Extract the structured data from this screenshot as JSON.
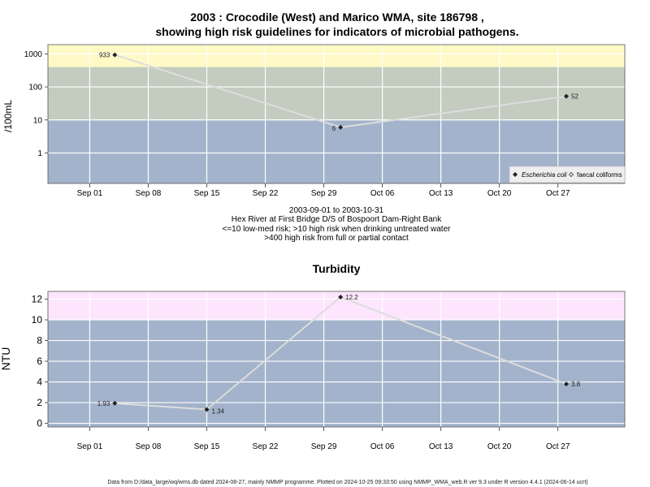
{
  "page": {
    "title_line1": "2003 : Crocodile (West) and Marico WMA, site 186798 ,",
    "title_line2": "showing high risk guidelines for indicators of microbial pathogens.",
    "footer": "Data from D:/data_large/wq/wms.db dated 2024-08-27, mainly NMMP programme. Plotted on 2024-10-25 09:33:50 using NMMP_WMA_web.R ver 9.3 under R version 4.4.1 (2024-06-14 ucrt)"
  },
  "colors": {
    "plot_bg": "#a3b3cb",
    "band_high_risk": "#fff9c6",
    "band_mid": "#c3ccbf",
    "band_turbidity_high": "#fde6fd",
    "grid": "#ffffff",
    "line": "#dddddd",
    "point": "#222222"
  },
  "chart_data": [
    {
      "type": "line",
      "ylabel": "/100mL",
      "yscale": "log",
      "ylim": [
        0.12,
        1900
      ],
      "yticks": [
        1,
        10,
        100,
        1000
      ],
      "ytick_labels": [
        "1",
        "10",
        "100",
        "1000"
      ],
      "xlim": [
        "2003-08-27",
        "2003-11-04"
      ],
      "xticks": [
        "2003-09-01",
        "2003-09-08",
        "2003-09-15",
        "2003-09-22",
        "2003-09-29",
        "2003-10-06",
        "2003-10-13",
        "2003-10-20",
        "2003-10-27"
      ],
      "xtick_labels": [
        "Sep 01",
        "Sep 08",
        "Sep 15",
        "Sep 22",
        "Sep 29",
        "Oct 06",
        "Oct 13",
        "Oct 20",
        "Oct 27"
      ],
      "bands": [
        {
          "from": 0.12,
          "to": 10,
          "color": "#a3b3cb"
        },
        {
          "from": 10,
          "to": 400,
          "color": "#c3ccbf"
        },
        {
          "from": 400,
          "to": 1900,
          "color": "#fff9c6"
        }
      ],
      "series": [
        {
          "name": "Escherichia coli",
          "x": [
            "2003-09-04",
            "2003-10-01",
            "2003-10-28"
          ],
          "y": [
            933,
            6,
            52
          ],
          "labels": [
            "933",
            "6",
            "52"
          ]
        }
      ],
      "legend": {
        "position": "bottom-right",
        "entries": [
          "Escherichia coli",
          "faecal coliforms"
        ]
      },
      "caption_lines": [
        "2003-09-01 to 2003-10-31",
        "Hex River at First Bridge D/S of Bospoort Dam-Right Bank",
        "<=10 low-med risk; >10 high risk when drinking untreated water",
        ">400 high risk from full or partial contact"
      ]
    },
    {
      "type": "line",
      "title": "Turbidity",
      "ylabel": "NTU",
      "yscale": "linear",
      "ylim": [
        -0.35,
        12.75
      ],
      "yticks": [
        0,
        2,
        4,
        6,
        8,
        10,
        12
      ],
      "ytick_labels": [
        "0",
        "2",
        "4",
        "6",
        "8",
        "10",
        "12"
      ],
      "xlim": [
        "2003-08-27",
        "2003-11-04"
      ],
      "xticks": [
        "2003-09-01",
        "2003-09-08",
        "2003-09-15",
        "2003-09-22",
        "2003-09-29",
        "2003-10-06",
        "2003-10-13",
        "2003-10-20",
        "2003-10-27"
      ],
      "xtick_labels": [
        "Sep 01",
        "Sep 08",
        "Sep 15",
        "Sep 22",
        "Sep 29",
        "Oct 06",
        "Oct 13",
        "Oct 20",
        "Oct 27"
      ],
      "bands": [
        {
          "from": -0.35,
          "to": 10,
          "color": "#a3b3cb"
        },
        {
          "from": 10,
          "to": 12.75,
          "color": "#fde6fd"
        }
      ],
      "series": [
        {
          "name": "",
          "x": [
            "2003-09-04",
            "2003-09-15",
            "2003-10-01",
            "2003-10-28"
          ],
          "y": [
            1.93,
            1.34,
            12.2,
            3.8
          ],
          "labels": [
            "1.93",
            "1.34",
            "12.2",
            "3.8"
          ]
        }
      ]
    }
  ]
}
